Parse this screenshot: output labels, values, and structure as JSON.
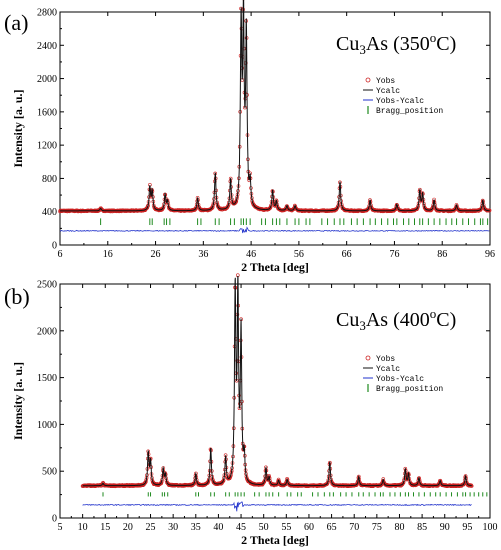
{
  "colors": {
    "obs": "#cc2222",
    "calc": "#111111",
    "diff": "#2233cc",
    "bragg": "#1f8a1f"
  },
  "legend": {
    "obs": "Yobs",
    "calc": "Ycalc",
    "diff": "Yobs-Ycalc",
    "bragg": "Bragg_position"
  },
  "chart_data": [
    {
      "type": "line",
      "panel_label": "(a)",
      "sample": {
        "pre": "Cu",
        "sub": "3",
        "post": "As (350",
        "sup": "o",
        "tail": "C)"
      },
      "xlabel": "2 Theta [deg]",
      "ylabel": "Intensity [a. u.]",
      "xlim": [
        6,
        96
      ],
      "ylim": [
        0,
        2800
      ],
      "xticks": [
        6,
        16,
        26,
        36,
        46,
        56,
        66,
        76,
        86,
        96
      ],
      "xtick_labels": [
        "6",
        "16",
        "26",
        "36",
        "46",
        "56",
        "66",
        "76",
        "86",
        "96"
      ],
      "yticks": [
        0,
        400,
        800,
        1200,
        1600,
        2000,
        2400,
        2800
      ],
      "background": 410,
      "diff_offset": 170,
      "bragg_y": [
        240,
        320
      ],
      "legend_position": "right",
      "peaks": [
        {
          "x": 14.5,
          "y": 440
        },
        {
          "x": 24.8,
          "y": 690
        },
        {
          "x": 25.3,
          "y": 640
        },
        {
          "x": 28.0,
          "y": 600
        },
        {
          "x": 28.5,
          "y": 520
        },
        {
          "x": 34.8,
          "y": 560
        },
        {
          "x": 38.5,
          "y": 860
        },
        {
          "x": 41.7,
          "y": 770
        },
        {
          "x": 43.9,
          "y": 2550
        },
        {
          "x": 44.4,
          "y": 2600
        },
        {
          "x": 45.0,
          "y": 2470
        },
        {
          "x": 45.8,
          "y": 700
        },
        {
          "x": 50.5,
          "y": 650
        },
        {
          "x": 51.3,
          "y": 520
        },
        {
          "x": 53.5,
          "y": 470
        },
        {
          "x": 55.2,
          "y": 470
        },
        {
          "x": 64.6,
          "y": 760
        },
        {
          "x": 70.9,
          "y": 540
        },
        {
          "x": 76.5,
          "y": 490
        },
        {
          "x": 81.3,
          "y": 650
        },
        {
          "x": 81.9,
          "y": 610
        },
        {
          "x": 84.3,
          "y": 540
        },
        {
          "x": 89.0,
          "y": 480
        },
        {
          "x": 94.5,
          "y": 540
        }
      ],
      "bragg_positions": [
        14.5,
        24.8,
        25.3,
        27.8,
        28.3,
        29.0,
        34.8,
        35.5,
        38.5,
        39.3,
        41.7,
        42.5,
        43.9,
        44.4,
        45.0,
        45.8,
        48.2,
        49.0,
        50.5,
        51.3,
        52.0,
        53.5,
        55.2,
        56.0,
        57.5,
        58.3,
        60.8,
        62.0,
        63.4,
        64.6,
        65.4,
        67.0,
        68.2,
        69.5,
        70.9,
        72.0,
        73.3,
        74.6,
        75.8,
        76.5,
        77.9,
        79.0,
        80.2,
        81.3,
        81.9,
        83.1,
        84.3,
        85.5,
        86.8,
        88.0,
        89.0,
        90.3,
        91.5,
        92.8,
        94.0,
        94.5,
        95.5
      ]
    },
    {
      "type": "line",
      "panel_label": "(b)",
      "sample": {
        "pre": "Cu",
        "sub": "3",
        "post": "As (400",
        "sup": "o",
        "tail": "C)"
      },
      "xlabel": "2 Theta [deg]",
      "ylabel": "Intensity [a. u.]",
      "xlim": [
        5,
        100
      ],
      "ylim": [
        0,
        2500
      ],
      "xticks": [
        5,
        10,
        15,
        20,
        25,
        30,
        35,
        40,
        45,
        50,
        55,
        60,
        65,
        70,
        75,
        80,
        85,
        90,
        95,
        100
      ],
      "xtick_labels": [
        "5",
        "10",
        "15",
        "20",
        "25",
        "30",
        "35",
        "40",
        "45",
        "50",
        "55",
        "60",
        "65",
        "70",
        "75",
        "80",
        "85",
        "90",
        "95",
        "100"
      ],
      "yticks": [
        0,
        500,
        1000,
        1500,
        2000,
        2500
      ],
      "background": 345,
      "diff_offset": 140,
      "bragg_y": [
        230,
        275
      ],
      "legend_position": "right",
      "peaks": [
        {
          "x": 14.5,
          "y": 370
        },
        {
          "x": 24.5,
          "y": 690
        },
        {
          "x": 25.0,
          "y": 600
        },
        {
          "x": 27.8,
          "y": 520
        },
        {
          "x": 28.3,
          "y": 460
        },
        {
          "x": 35.0,
          "y": 470
        },
        {
          "x": 38.3,
          "y": 740
        },
        {
          "x": 41.6,
          "y": 640
        },
        {
          "x": 43.7,
          "y": 2380
        },
        {
          "x": 44.3,
          "y": 2330
        },
        {
          "x": 45.0,
          "y": 1950
        },
        {
          "x": 45.7,
          "y": 630
        },
        {
          "x": 50.5,
          "y": 530
        },
        {
          "x": 51.2,
          "y": 430
        },
        {
          "x": 53.3,
          "y": 400
        },
        {
          "x": 55.2,
          "y": 410
        },
        {
          "x": 64.6,
          "y": 600
        },
        {
          "x": 71.0,
          "y": 440
        },
        {
          "x": 76.4,
          "y": 410
        },
        {
          "x": 81.3,
          "y": 520
        },
        {
          "x": 82.0,
          "y": 470
        },
        {
          "x": 84.3,
          "y": 430
        },
        {
          "x": 89.0,
          "y": 400
        },
        {
          "x": 94.6,
          "y": 450
        }
      ],
      "bragg_positions": [
        14.5,
        24.5,
        25.0,
        27.6,
        28.1,
        28.8,
        35.0,
        35.6,
        38.3,
        39.1,
        41.6,
        42.4,
        43.7,
        44.3,
        45.0,
        45.7,
        48.0,
        49.0,
        50.5,
        51.2,
        52.0,
        53.3,
        55.2,
        56.0,
        57.5,
        58.3,
        60.8,
        62.0,
        63.4,
        64.6,
        65.4,
        67.0,
        68.2,
        69.5,
        71.0,
        72.0,
        73.3,
        74.6,
        75.8,
        76.4,
        77.9,
        79.0,
        80.2,
        81.3,
        82.0,
        83.1,
        84.3,
        85.5,
        86.8,
        88.0,
        89.0,
        90.3,
        91.5,
        92.8,
        94.0,
        94.6,
        95.6,
        96.5,
        97.5,
        98.4,
        99.3
      ]
    }
  ]
}
